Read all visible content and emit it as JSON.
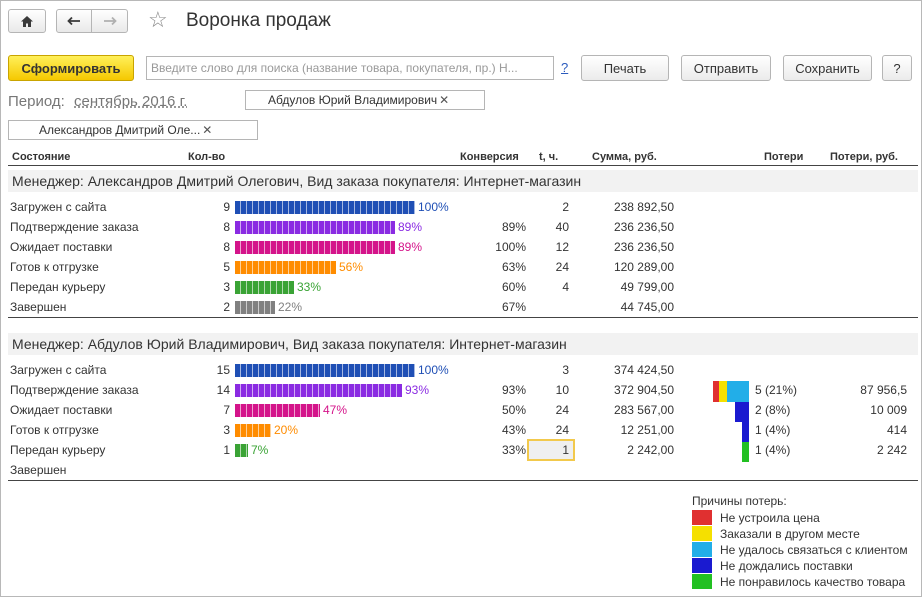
{
  "window": {
    "title": "Воронка продаж"
  },
  "toolbar": {
    "generate_label": "Сформировать",
    "search_placeholder": "Введите слово для поиска (название товара, покупателя, пр.) Н...",
    "help_label": "?",
    "print_label": "Печать",
    "send_label": "Отправить",
    "save_label": "Сохранить",
    "help_button_label": "?"
  },
  "filters": {
    "period_label": "Период:",
    "period_value": "сентябрь 2016 г.",
    "manager_1": "Абдулов Юрий Владимирович",
    "manager_2": "Александров Дмитрий Оле...",
    "remove_symbol": "✕"
  },
  "columns": {
    "state": "Состояние",
    "qty": "Кол-во",
    "conversion": "Конверсия",
    "time": "t, ч.",
    "sum": "Сумма, руб.",
    "losses": "Потери",
    "losses_rub": "Потери, руб."
  },
  "groups": [
    {
      "title": "Менеджер: Александров Дмитрий Олегович, Вид заказа покупателя: Интернет-магазин",
      "rows": [
        {
          "state": "Загружен с сайта",
          "qty": "9",
          "fill": 1.0,
          "pct": "100%",
          "conversion": "",
          "time": "2",
          "sum": "238 892,50",
          "color": "#1f4fb5"
        },
        {
          "state": "Подтверждение заказа",
          "qty": "8",
          "fill": 0.89,
          "pct": "89%",
          "conversion": "89%",
          "time": "40",
          "sum": "236 236,50",
          "color": "#8a2be2"
        },
        {
          "state": "Ожидает поставки",
          "qty": "8",
          "fill": 0.89,
          "pct": "89%",
          "conversion": "100%",
          "time": "12",
          "sum": "236 236,50",
          "color": "#d4148a"
        },
        {
          "state": "Готов к отгрузке",
          "qty": "5",
          "fill": 0.56,
          "pct": "56%",
          "conversion": "63%",
          "time": "24",
          "sum": "120 289,00",
          "color": "#ff8c00"
        },
        {
          "state": "Передан курьеру",
          "qty": "3",
          "fill": 0.33,
          "pct": "33%",
          "conversion": "60%",
          "time": "4",
          "sum": "49 799,00",
          "color": "#3aa335"
        },
        {
          "state": "Завершен",
          "qty": "2",
          "fill": 0.22,
          "pct": "22%",
          "conversion": "67%",
          "time": "",
          "sum": "44 745,00",
          "color": "#808080"
        }
      ]
    },
    {
      "title": "Менеджер: Абдулов Юрий Владимирович, Вид заказа покупателя: Интернет-магазин",
      "rows": [
        {
          "state": "Загружен с сайта",
          "qty": "15",
          "fill": 1.0,
          "pct": "100%",
          "conversion": "",
          "time": "3",
          "sum": "374 424,50",
          "color": "#1f4fb5",
          "loss": "",
          "loss_rub": ""
        },
        {
          "state": "Подтверждение заказа",
          "qty": "14",
          "fill": 0.93,
          "pct": "93%",
          "conversion": "93%",
          "time": "10",
          "sum": "372 904,50",
          "color": "#8a2be2",
          "loss": "5 (21%)",
          "loss_rub": "87 956,5"
        },
        {
          "state": "Ожидает поставки",
          "qty": "7",
          "fill": 0.47,
          "pct": "47%",
          "conversion": "50%",
          "time": "24",
          "sum": "283 567,00",
          "color": "#d4148a",
          "loss": "2 (8%)",
          "loss_rub": "10 009"
        },
        {
          "state": "Готов к отгрузке",
          "qty": "3",
          "fill": 0.2,
          "pct": "20%",
          "conversion": "43%",
          "time": "24",
          "sum": "12 251,00",
          "color": "#ff8c00",
          "loss": "1 (4%)",
          "loss_rub": "414"
        },
        {
          "state": "Передан курьеру",
          "qty": "1",
          "fill": 0.07,
          "pct": "7%",
          "conversion": "33%",
          "time": "1",
          "sum": "2 242,00",
          "color": "#3aa335",
          "loss": "1 (4%)",
          "loss_rub": "2 242"
        },
        {
          "state": "Завершен",
          "qty": "",
          "fill": 0,
          "pct": "",
          "conversion": "",
          "time": "",
          "sum": "",
          "color": "#808080",
          "loss": "",
          "loss_rub": ""
        }
      ]
    }
  ],
  "loss_reasons": {
    "title": "Причины потерь:",
    "items": [
      {
        "label": "Не устроила цена",
        "color": "#e03030"
      },
      {
        "label": "Заказали в другом месте",
        "color": "#f5e000"
      },
      {
        "label": "Не удалось связаться с клиентом",
        "color": "#22aee8"
      },
      {
        "label": "Не дождались поставки",
        "color": "#1a1ad0"
      },
      {
        "label": "Не понравилось качество товара",
        "color": "#22c022"
      }
    ]
  },
  "colors": {
    "accent": "#f5c800",
    "link": "#2b5bbd"
  }
}
